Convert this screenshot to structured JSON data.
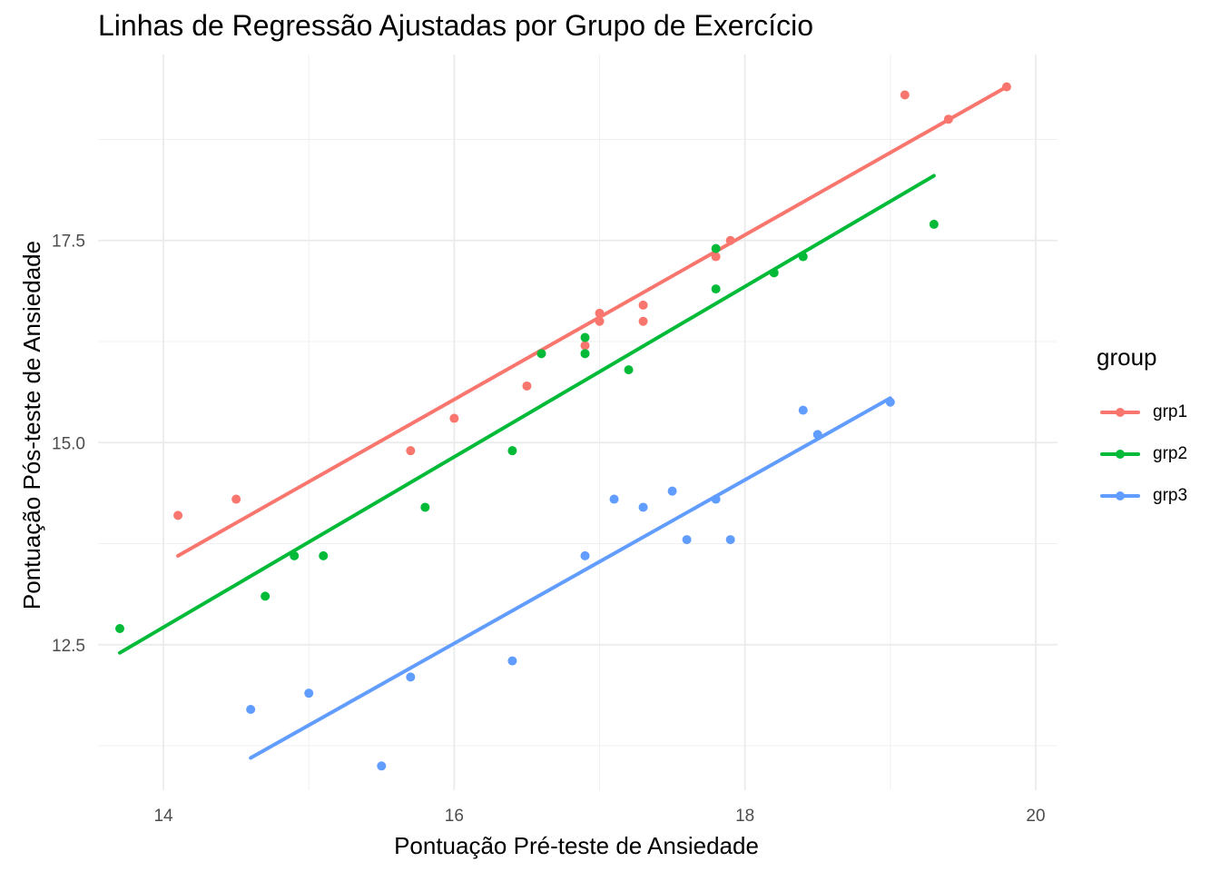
{
  "chart_data": {
    "type": "scatter",
    "title": "Linhas de Regressão Ajustadas por Grupo de Exercício",
    "xlabel": "Pontuação Pré-teste de Ansiedade",
    "ylabel": "Pontuação Pós-teste de Ansiedade",
    "xlim": [
      13.55,
      20.15
    ],
    "ylim": [
      10.7,
      19.8
    ],
    "x_ticks": [
      14,
      16,
      18,
      20
    ],
    "x_tick_labels": [
      "14",
      "16",
      "18",
      "20"
    ],
    "y_ticks": [
      12.5,
      15.0,
      17.5
    ],
    "y_tick_labels": [
      "12.5",
      "15.0",
      "17.5"
    ],
    "grid": true,
    "legend_title": "group",
    "legend_position": "right",
    "series": [
      {
        "name": "grp1",
        "color": "#F8766D",
        "points": [
          [
            14.1,
            14.1
          ],
          [
            14.5,
            14.3
          ],
          [
            15.7,
            14.9
          ],
          [
            16.0,
            15.3
          ],
          [
            16.5,
            15.7
          ],
          [
            16.9,
            16.2
          ],
          [
            17.0,
            16.5
          ],
          [
            17.0,
            16.6
          ],
          [
            17.3,
            16.5
          ],
          [
            17.3,
            16.7
          ],
          [
            17.8,
            17.3
          ],
          [
            17.9,
            17.5
          ],
          [
            19.1,
            19.3
          ],
          [
            19.4,
            19.0
          ],
          [
            19.8,
            19.4
          ]
        ],
        "regression_line": [
          [
            14.1,
            13.6
          ],
          [
            19.8,
            19.4
          ]
        ]
      },
      {
        "name": "grp2",
        "color": "#00BA38",
        "points": [
          [
            13.7,
            12.7
          ],
          [
            14.7,
            13.1
          ],
          [
            14.9,
            13.6
          ],
          [
            15.1,
            13.6
          ],
          [
            15.8,
            14.2
          ],
          [
            16.4,
            14.9
          ],
          [
            16.6,
            16.1
          ],
          [
            16.9,
            16.1
          ],
          [
            16.9,
            16.3
          ],
          [
            17.2,
            15.9
          ],
          [
            17.8,
            16.9
          ],
          [
            17.8,
            17.4
          ],
          [
            18.2,
            17.1
          ],
          [
            18.4,
            17.3
          ],
          [
            19.3,
            17.7
          ]
        ],
        "regression_line": [
          [
            13.7,
            12.4
          ],
          [
            19.3,
            18.3
          ]
        ]
      },
      {
        "name": "grp3",
        "color": "#619CFF",
        "points": [
          [
            14.6,
            11.7
          ],
          [
            15.0,
            11.9
          ],
          [
            15.5,
            11.0
          ],
          [
            15.7,
            12.1
          ],
          [
            16.4,
            12.3
          ],
          [
            16.9,
            13.6
          ],
          [
            17.1,
            14.3
          ],
          [
            17.3,
            14.2
          ],
          [
            17.5,
            14.4
          ],
          [
            17.6,
            13.8
          ],
          [
            17.8,
            14.3
          ],
          [
            17.9,
            13.8
          ],
          [
            18.4,
            15.4
          ],
          [
            18.5,
            15.1
          ],
          [
            19.0,
            15.5
          ]
        ],
        "regression_line": [
          [
            14.6,
            11.1
          ],
          [
            19.0,
            15.55
          ]
        ]
      }
    ]
  }
}
